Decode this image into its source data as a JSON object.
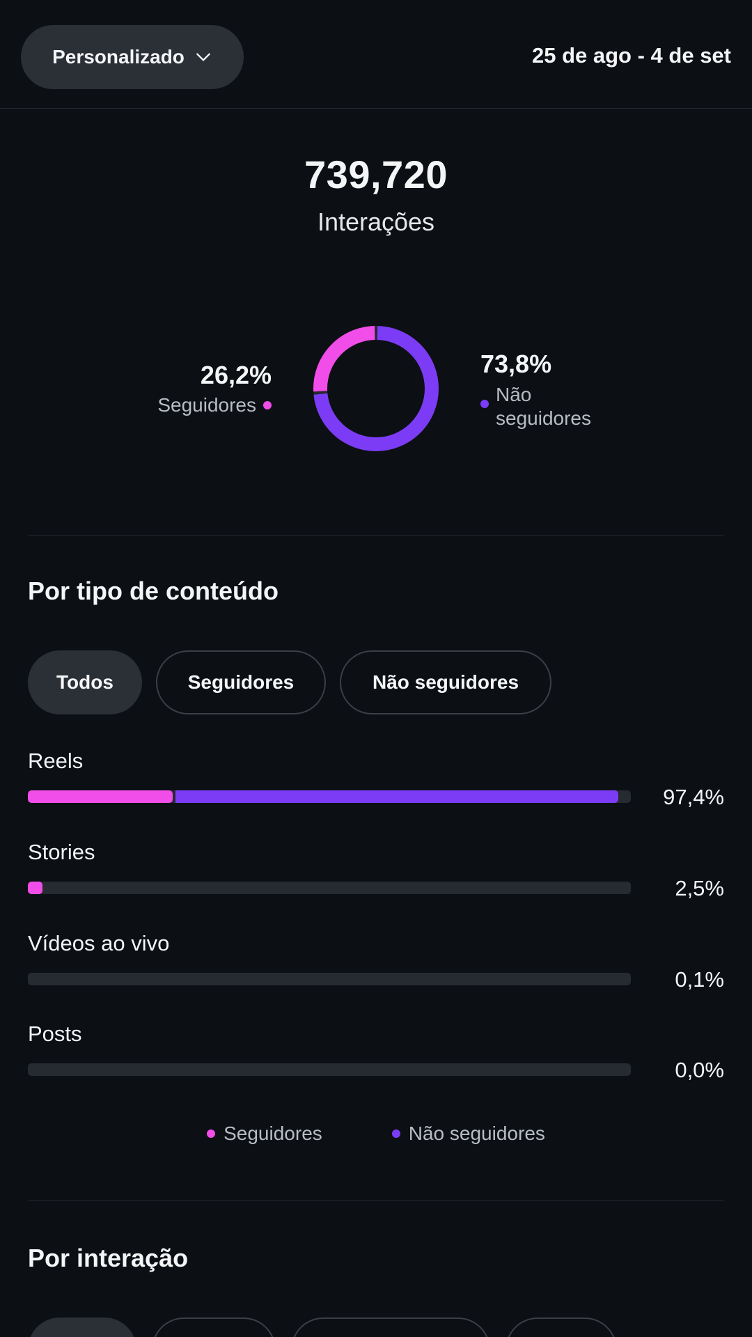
{
  "header": {
    "range_label": "Personalizado",
    "date_range": "25 de ago - 4 de set"
  },
  "summary": {
    "total": "739,720",
    "total_label": "Interações",
    "followers_pct_text": "26,2%",
    "followers_label": "Seguidores",
    "followers_fraction": 0.262,
    "non_followers_pct_text": "73,8%",
    "non_followers_label_line1": "Não",
    "non_followers_label_line2": "seguidores",
    "non_followers_fraction": 0.738
  },
  "colors": {
    "followers": "#f14de8",
    "non_followers": "#7c3cf5",
    "background": "#0c0f14",
    "track": "#262a31"
  },
  "content_type": {
    "title": "Por tipo de conteúdo",
    "filters": [
      "Todos",
      "Seguidores",
      "Não seguidores"
    ],
    "active_filter": "Todos",
    "rows": [
      {
        "label": "Reels",
        "value_text": "97,4%",
        "followers_fraction": 0.24,
        "non_followers_fraction": 0.734
      },
      {
        "label": "Stories",
        "value_text": "2,5%",
        "followers_fraction": 0.024,
        "non_followers_fraction": 0.0
      },
      {
        "label": "Vídeos ao vivo",
        "value_text": "0,1%",
        "followers_fraction": 0.0,
        "non_followers_fraction": 0.0
      },
      {
        "label": "Posts",
        "value_text": "0,0%",
        "followers_fraction": 0.0,
        "non_followers_fraction": 0.0
      }
    ],
    "legend": [
      "Seguidores",
      "Não seguidores"
    ]
  },
  "by_interaction": {
    "title": "Por interação"
  }
}
